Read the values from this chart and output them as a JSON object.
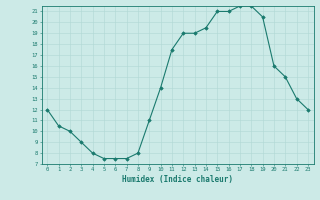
{
  "xlabel": "Humidex (Indice chaleur)",
  "x": [
    0,
    1,
    2,
    3,
    4,
    5,
    6,
    7,
    8,
    9,
    10,
    11,
    12,
    13,
    14,
    15,
    16,
    17,
    18,
    19,
    20,
    21,
    22,
    23
  ],
  "y": [
    12,
    10.5,
    10,
    9,
    8,
    7.5,
    7.5,
    7.5,
    8,
    11,
    14,
    17.5,
    19,
    19,
    19.5,
    21,
    21,
    21.5,
    21.5,
    20.5,
    16,
    15,
    13,
    12
  ],
  "ylim": [
    7,
    21.5
  ],
  "xlim": [
    -0.5,
    23.5
  ],
  "line_color": "#1a7a6e",
  "marker_color": "#1a7a6e",
  "bg_color": "#cceae7",
  "grid_color": "#b0d8d4",
  "tick_label_color": "#1a7a6e",
  "axis_color": "#1a7a6e",
  "yticks": [
    7,
    8,
    9,
    10,
    11,
    12,
    13,
    14,
    15,
    16,
    17,
    18,
    19,
    20,
    21
  ],
  "xticks": [
    0,
    1,
    2,
    3,
    4,
    5,
    6,
    7,
    8,
    9,
    10,
    11,
    12,
    13,
    14,
    15,
    16,
    17,
    18,
    19,
    20,
    21,
    22,
    23
  ]
}
